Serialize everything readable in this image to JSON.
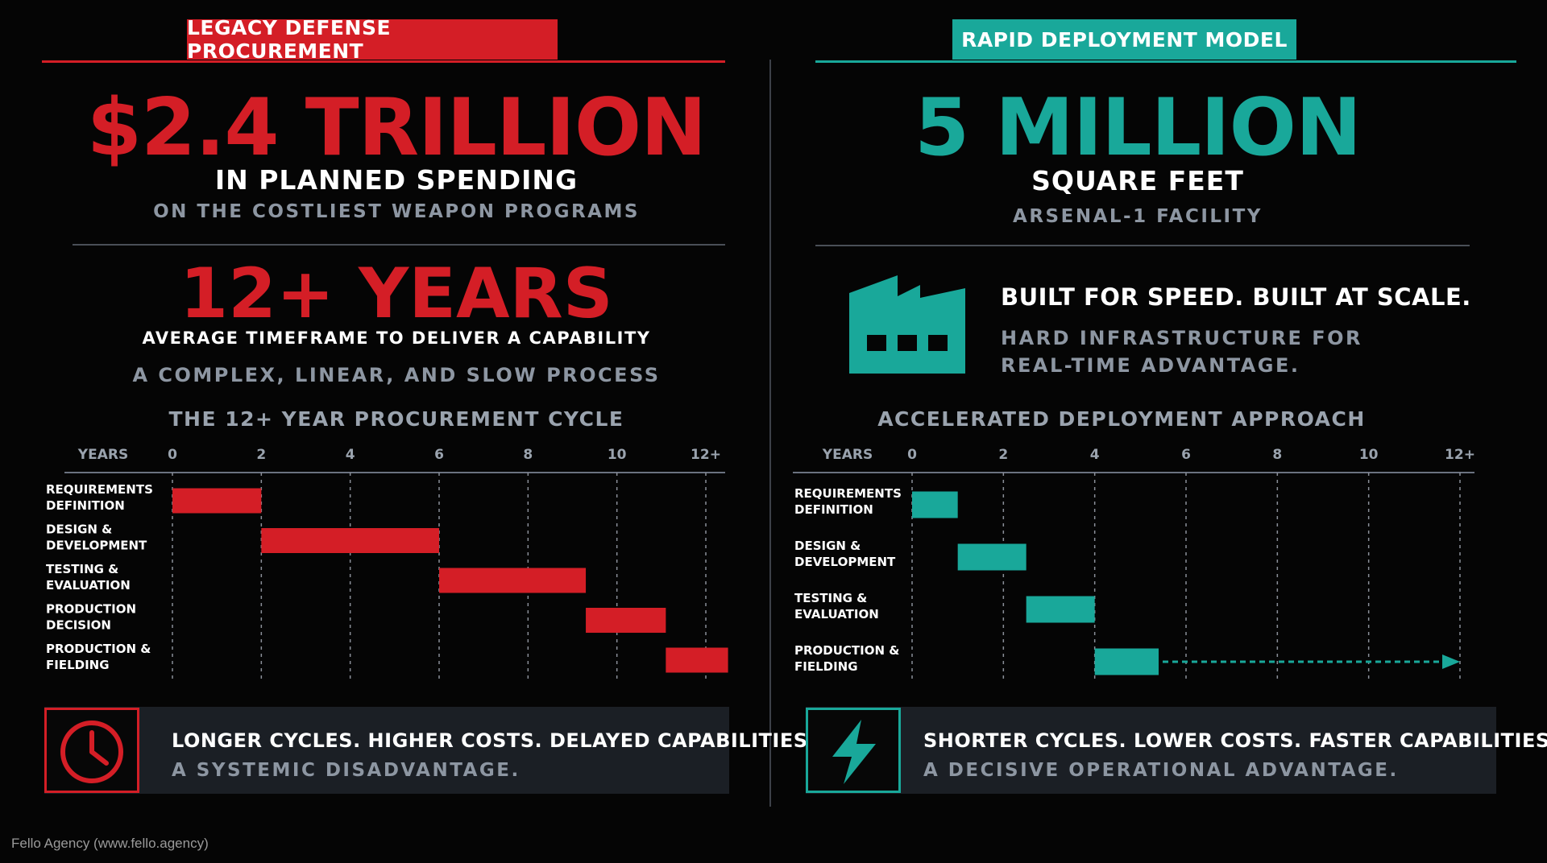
{
  "left": {
    "banner": "LEGACY DEFENSE PROCUREMENT",
    "headline": "$2.4 TRILLION",
    "headline_sub": "IN PLANNED SPENDING",
    "headline_note": "ON THE COSTLIEST WEAPON PROGRAMS",
    "years_headline": "12+ YEARS",
    "years_sub": "AVERAGE TIMEFRAME TO DELIVER A CAPABILITY",
    "years_note": "A COMPLEX, LINEAR, AND SLOW PROCESS",
    "footer_line1": "LONGER CYCLES. HIGHER COSTS. DELAYED CAPABILITIES.",
    "footer_line2": "A SYSTEMIC DISADVANTAGE.",
    "footer_icon": "clock-icon"
  },
  "right": {
    "banner": "RAPID DEPLOYMENT MODEL",
    "headline": "5 MILLION",
    "headline_sub": "SQUARE FEET",
    "headline_note": "ARSENAL-1 FACILITY",
    "factory_title": "BUILT FOR SPEED. BUILT AT SCALE.",
    "factory_desc_1": "HARD INFRASTRUCTURE FOR",
    "factory_desc_2": "REAL-TIME ADVANTAGE.",
    "factory_icon": "factory-icon",
    "footer_line1": "SHORTER CYCLES. LOWER COSTS. FASTER CAPABILITIES.",
    "footer_line2": "A DECISIVE OPERATIONAL ADVANTAGE.",
    "footer_icon": "lightning-icon"
  },
  "credit": "Fello Agency (www.fello.agency)",
  "colors": {
    "red": "#d41e26",
    "teal": "#19a89a",
    "gray": "#8d96a2",
    "background": "#050505"
  },
  "chart_data": [
    {
      "type": "bar",
      "orientation": "gantt",
      "title": "THE 12+ YEAR PROCUREMENT CYCLE",
      "axis_label": "YEARS",
      "ticks": [
        "0",
        "2",
        "4",
        "6",
        "8",
        "10",
        "12+"
      ],
      "xlim": [
        0,
        12
      ],
      "grid": true,
      "color": "#d41e26",
      "categories": [
        [
          "REQUIREMENTS",
          "DEFINITION"
        ],
        [
          "DESIGN &",
          "DEVELOPMENT"
        ],
        [
          "TESTING &",
          "EVALUATION"
        ],
        [
          "PRODUCTION",
          "DECISION"
        ],
        [
          "PRODUCTION &",
          "FIELDING"
        ]
      ],
      "bars": [
        {
          "start": 0,
          "end": 2
        },
        {
          "start": 2,
          "end": 6
        },
        {
          "start": 6,
          "end": 9.3
        },
        {
          "start": 9.3,
          "end": 11.1
        },
        {
          "start": 11.1,
          "end": 12.5
        }
      ]
    },
    {
      "type": "bar",
      "orientation": "gantt",
      "title": "ACCELERATED DEPLOYMENT APPROACH",
      "axis_label": "YEARS",
      "ticks": [
        "0",
        "2",
        "4",
        "6",
        "8",
        "10",
        "12+"
      ],
      "xlim": [
        0,
        12
      ],
      "grid": true,
      "color": "#19a89a",
      "categories": [
        [
          "REQUIREMENTS",
          "DEFINITION"
        ],
        [
          "DESIGN &",
          "DEVELOPMENT"
        ],
        [
          "TESTING &",
          "EVALUATION"
        ],
        [
          "PRODUCTION &",
          "FIELDING"
        ]
      ],
      "bars": [
        {
          "start": 0,
          "end": 1
        },
        {
          "start": 1,
          "end": 2.5
        },
        {
          "start": 2.5,
          "end": 4
        },
        {
          "start": 4,
          "end": 5.4,
          "arrow_to": 12
        }
      ]
    }
  ]
}
